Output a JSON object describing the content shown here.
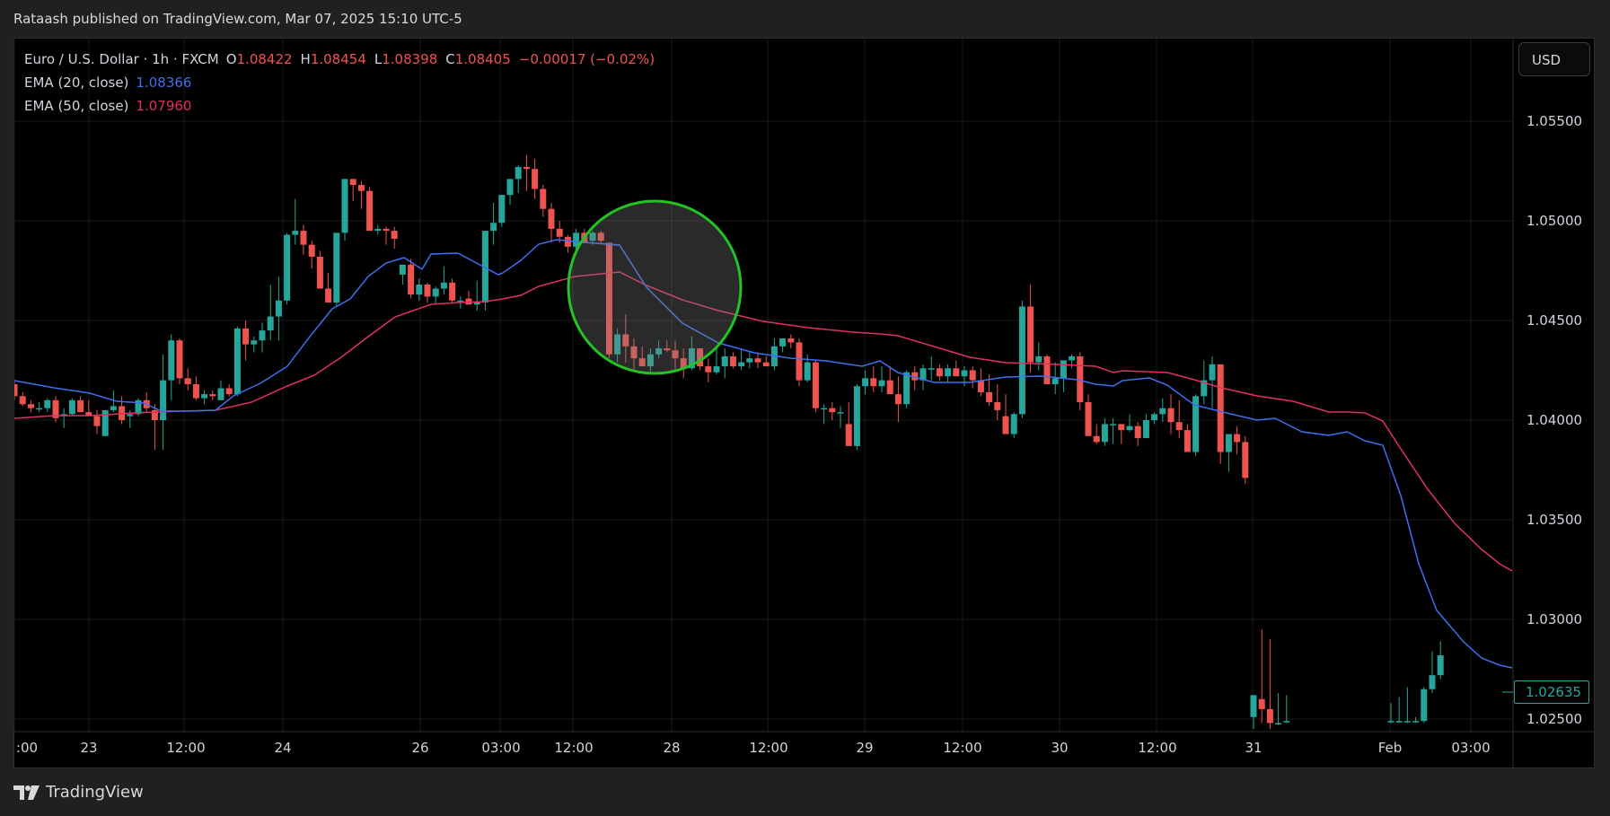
{
  "header": {
    "published": "Rataash published on TradingView.com, Mar 07, 2025 15:10 UTC-5"
  },
  "legend": {
    "symbol": "Euro / U.S. Dollar · 1h · FXCM",
    "open_label": "O",
    "open": "1.08422",
    "high_label": "H",
    "high": "1.08454",
    "low_label": "L",
    "low": "1.08398",
    "close_label": "C",
    "close": "1.08405",
    "change": "−0.00017 (−0.02%)",
    "ema20_label": "EMA (20, close)",
    "ema20_value": "1.08366",
    "ema50_label": "EMA (50, close)",
    "ema50_value": "1.07960"
  },
  "currency_button": "USD",
  "price_axis": {
    "labels": [
      "1.05500",
      "1.05000",
      "1.04500",
      "1.04000",
      "1.03500",
      "1.03000",
      "1.02500"
    ],
    "current_price": "1.02635"
  },
  "time_axis": {
    "labels": [
      ":00",
      "23",
      "12:00",
      "24",
      "26",
      "03:00",
      "12:00",
      "28",
      "12:00",
      "29",
      "12:00",
      "30",
      "12:00",
      "31",
      "Feb",
      "03:00"
    ]
  },
  "footer": {
    "brand": "TradingView"
  },
  "colors": {
    "up": "#26a69a",
    "down": "#ef5350",
    "ema20": "#3d6ff0",
    "ema50": "#e0305f",
    "highlight_circle": "#22c322",
    "background": "#000000",
    "grid": "#1a1a1a"
  },
  "chart_data": {
    "type": "candlestick",
    "title": "Euro / U.S. Dollar · 1h · FXCM",
    "xlabel": "",
    "ylabel": "USD",
    "ylim": [
      1.0245,
      1.058
    ],
    "grid": true,
    "legend_position": "top-left",
    "series": [
      {
        "name": "EUR/USD 1h (O,H,L,C)",
        "values": [
          [
            1.0418,
            1.042,
            1.041,
            1.0412
          ],
          [
            1.0412,
            1.0414,
            1.0407,
            1.0408
          ],
          [
            1.0408,
            1.041,
            1.0404,
            1.0406
          ],
          [
            1.0406,
            1.0409,
            1.0404,
            1.0406
          ],
          [
            1.0406,
            1.0411,
            1.0404,
            1.041
          ],
          [
            1.041,
            1.0412,
            1.0399,
            1.0401
          ],
          [
            1.0402,
            1.0406,
            1.0396,
            1.0403
          ],
          [
            1.0403,
            1.0411,
            1.0402,
            1.041
          ],
          [
            1.041,
            1.0412,
            1.0404,
            1.0404
          ],
          [
            1.0404,
            1.041,
            1.0402,
            1.0402
          ],
          [
            1.0402,
            1.0405,
            1.0393,
            1.0397
          ],
          [
            1.0392,
            1.0405,
            1.0392,
            1.0405
          ],
          [
            1.0405,
            1.0415,
            1.0404,
            1.0407
          ],
          [
            1.0407,
            1.0412,
            1.0398,
            1.04
          ],
          [
            1.0402,
            1.0405,
            1.0396,
            1.0403
          ],
          [
            1.0403,
            1.0411,
            1.0402,
            1.041
          ],
          [
            1.041,
            1.0414,
            1.0404,
            1.0406
          ],
          [
            1.0405,
            1.0408,
            1.0385,
            1.04
          ],
          [
            1.04,
            1.0433,
            1.0385,
            1.042
          ],
          [
            1.042,
            1.0443,
            1.041,
            1.044
          ],
          [
            1.044,
            1.0441,
            1.0418,
            1.0421
          ],
          [
            1.0421,
            1.0426,
            1.0415,
            1.0418
          ],
          [
            1.0418,
            1.0422,
            1.041,
            1.0411
          ],
          [
            1.0411,
            1.0415,
            1.0408,
            1.0413
          ],
          [
            1.0413,
            1.0415,
            1.041,
            1.0412
          ],
          [
            1.041,
            1.042,
            1.041,
            1.0416
          ],
          [
            1.0416,
            1.0418,
            1.0412,
            1.0413
          ],
          [
            1.0413,
            1.0447,
            1.0412,
            1.0446
          ],
          [
            1.0446,
            1.045,
            1.043,
            1.0438
          ],
          [
            1.0438,
            1.0442,
            1.0434,
            1.044
          ],
          [
            1.044,
            1.0449,
            1.0434,
            1.0445
          ],
          [
            1.0445,
            1.0468,
            1.044,
            1.0452
          ],
          [
            1.0452,
            1.0472,
            1.044,
            1.046
          ],
          [
            1.046,
            1.0494,
            1.0458,
            1.0493
          ],
          [
            1.0493,
            1.0511,
            1.0488,
            1.0495
          ],
          [
            1.0495,
            1.0498,
            1.0483,
            1.0488
          ],
          [
            1.0488,
            1.049,
            1.0476,
            1.0482
          ],
          [
            1.0482,
            1.0485,
            1.0466,
            1.0466
          ],
          [
            1.0466,
            1.0474,
            1.0459,
            1.0459
          ],
          [
            1.0459,
            1.0494,
            1.0457,
            1.0494
          ],
          [
            1.0494,
            1.052,
            1.049,
            1.0521
          ],
          [
            1.0521,
            1.0521,
            1.051,
            1.0518
          ],
          [
            1.0518,
            1.052,
            1.0506,
            1.0515
          ],
          [
            1.0515,
            1.0517,
            1.0495,
            1.0495
          ],
          [
            1.0495,
            1.0498,
            1.0493,
            1.0496
          ],
          [
            1.0496,
            1.0497,
            1.0488,
            1.0495
          ],
          [
            1.0495,
            1.0497,
            1.0486,
            1.0491
          ],
          [
            1.0473,
            1.0478,
            1.0468,
            1.0478
          ],
          [
            1.0478,
            1.0481,
            1.0461,
            1.0463
          ],
          [
            1.0463,
            1.0471,
            1.046,
            1.0468
          ],
          [
            1.0468,
            1.0469,
            1.0459,
            1.0462
          ],
          [
            1.0462,
            1.0467,
            1.0458,
            1.0466
          ],
          [
            1.0466,
            1.0477,
            1.0463,
            1.0469
          ],
          [
            1.0469,
            1.0471,
            1.0459,
            1.046
          ],
          [
            1.046,
            1.0462,
            1.0456,
            1.046
          ],
          [
            1.0461,
            1.0465,
            1.0458,
            1.0458
          ],
          [
            1.0458,
            1.047,
            1.0455,
            1.0459
          ],
          [
            1.0459,
            1.0495,
            1.0455,
            1.0495
          ],
          [
            1.0495,
            1.0509,
            1.0488,
            1.0499
          ],
          [
            1.0499,
            1.0511,
            1.0497,
            1.0513
          ],
          [
            1.0513,
            1.0517,
            1.0508,
            1.0521
          ],
          [
            1.0521,
            1.0528,
            1.0514,
            1.0527
          ],
          [
            1.0527,
            1.0533,
            1.0515,
            1.0526
          ],
          [
            1.0526,
            1.0531,
            1.0511,
            1.0516
          ],
          [
            1.0516,
            1.0518,
            1.0502,
            1.0506
          ],
          [
            1.0506,
            1.0509,
            1.0489,
            1.0496
          ],
          [
            1.0496,
            1.05,
            1.0489,
            1.0492
          ],
          [
            1.0492,
            1.0493,
            1.0484,
            1.0487
          ],
          [
            1.0487,
            1.0496,
            1.0484,
            1.0494
          ],
          [
            1.0494,
            1.0496,
            1.0489,
            1.0489
          ],
          [
            1.049,
            1.0495,
            1.0488,
            1.0494
          ],
          [
            1.0494,
            1.0495,
            1.0488,
            1.049
          ],
          [
            1.0489,
            1.0489,
            1.0431,
            1.0433
          ],
          [
            1.0433,
            1.0446,
            1.0429,
            1.0443
          ],
          [
            1.0443,
            1.0453,
            1.0429,
            1.0437
          ],
          [
            1.0437,
            1.0441,
            1.0425,
            1.0431
          ],
          [
            1.0431,
            1.0437,
            1.0428,
            1.0427
          ],
          [
            1.0427,
            1.0436,
            1.0424,
            1.0433
          ],
          [
            1.0433,
            1.044,
            1.0431,
            1.0436
          ],
          [
            1.0436,
            1.044,
            1.0434,
            1.0435
          ],
          [
            1.0435,
            1.044,
            1.0425,
            1.0431
          ],
          [
            1.0431,
            1.0436,
            1.0421,
            1.0426
          ],
          [
            1.0426,
            1.0442,
            1.0425,
            1.0436
          ],
          [
            1.0436,
            1.0436,
            1.0425,
            1.0427
          ],
          [
            1.0427,
            1.0431,
            1.0419,
            1.0424
          ],
          [
            1.0424,
            1.0436,
            1.0423,
            1.0427
          ],
          [
            1.0427,
            1.0436,
            1.0421,
            1.0432
          ],
          [
            1.0432,
            1.0434,
            1.0426,
            1.0427
          ],
          [
            1.0427,
            1.0436,
            1.0425,
            1.0429
          ],
          [
            1.0429,
            1.0434,
            1.0426,
            1.0431
          ],
          [
            1.0431,
            1.0434,
            1.0426,
            1.0429
          ],
          [
            1.0429,
            1.0432,
            1.0427,
            1.0427
          ],
          [
            1.0427,
            1.0441,
            1.0425,
            1.0437
          ],
          [
            1.0437,
            1.0441,
            1.0434,
            1.0441
          ],
          [
            1.0441,
            1.0443,
            1.0436,
            1.0439
          ],
          [
            1.0439,
            1.0441,
            1.0417,
            1.042
          ],
          [
            1.042,
            1.0433,
            1.0419,
            1.0429
          ],
          [
            1.0429,
            1.043,
            1.0404,
            1.0406
          ],
          [
            1.0406,
            1.0408,
            1.0398,
            1.0406
          ],
          [
            1.0406,
            1.0409,
            1.04,
            1.0404
          ],
          [
            1.0404,
            1.0407,
            1.0396,
            1.0404
          ],
          [
            1.0398,
            1.0409,
            1.0395,
            1.0387
          ],
          [
            1.0387,
            1.0418,
            1.0385,
            1.0417
          ],
          [
            1.0417,
            1.0425,
            1.0413,
            1.0421
          ],
          [
            1.0421,
            1.0427,
            1.0414,
            1.0417
          ],
          [
            1.0417,
            1.0427,
            1.0414,
            1.042
          ],
          [
            1.042,
            1.0427,
            1.0414,
            1.0413
          ],
          [
            1.0413,
            1.0422,
            1.0399,
            1.0408
          ],
          [
            1.0408,
            1.0425,
            1.0406,
            1.0424
          ],
          [
            1.0424,
            1.0427,
            1.0415,
            1.042
          ],
          [
            1.042,
            1.0428,
            1.0415,
            1.0426
          ],
          [
            1.0426,
            1.0432,
            1.042,
            1.0426
          ],
          [
            1.0426,
            1.0428,
            1.042,
            1.0422
          ],
          [
            1.0422,
            1.0428,
            1.0419,
            1.0426
          ],
          [
            1.0426,
            1.043,
            1.0422,
            1.0422
          ],
          [
            1.0422,
            1.0427,
            1.0417,
            1.0425
          ],
          [
            1.0425,
            1.0427,
            1.0416,
            1.042
          ],
          [
            1.042,
            1.0426,
            1.0412,
            1.0414
          ],
          [
            1.0414,
            1.0423,
            1.0407,
            1.0409
          ],
          [
            1.0409,
            1.0418,
            1.04,
            1.0405
          ],
          [
            1.0402,
            1.0413,
            1.0399,
            1.0393
          ],
          [
            1.0393,
            1.0404,
            1.0391,
            1.0403
          ],
          [
            1.0403,
            1.046,
            1.0401,
            1.0457
          ],
          [
            1.0457,
            1.0468,
            1.0424,
            1.0429
          ],
          [
            1.0429,
            1.0439,
            1.0425,
            1.0432
          ],
          [
            1.0432,
            1.0433,
            1.0418,
            1.0418
          ],
          [
            1.0418,
            1.0429,
            1.0413,
            1.0421
          ],
          [
            1.0421,
            1.0429,
            1.0414,
            1.043
          ],
          [
            1.043,
            1.0433,
            1.0426,
            1.0432
          ],
          [
            1.0432,
            1.0434,
            1.0405,
            1.0409
          ],
          [
            1.0409,
            1.0413,
            1.0392,
            1.0392
          ],
          [
            1.0392,
            1.0398,
            1.0388,
            1.0389
          ],
          [
            1.0389,
            1.0401,
            1.0387,
            1.0398
          ],
          [
            1.0398,
            1.0401,
            1.0388,
            1.0398
          ],
          [
            1.0398,
            1.0398,
            1.0388,
            1.0395
          ],
          [
            1.0395,
            1.0403,
            1.0394,
            1.0397
          ],
          [
            1.0397,
            1.0399,
            1.0387,
            1.0391
          ],
          [
            1.0391,
            1.0403,
            1.0391,
            1.04
          ],
          [
            1.04,
            1.0404,
            1.0398,
            1.0403
          ],
          [
            1.0403,
            1.0411,
            1.0399,
            1.0406
          ],
          [
            1.0406,
            1.0413,
            1.0393,
            1.0399
          ],
          [
            1.0399,
            1.041,
            1.0391,
            1.0395
          ],
          [
            1.0395,
            1.0398,
            1.0384,
            1.0384
          ],
          [
            1.0384,
            1.0413,
            1.0382,
            1.0412
          ],
          [
            1.0412,
            1.043,
            1.0408,
            1.042
          ],
          [
            1.042,
            1.0432,
            1.0406,
            1.0428
          ],
          [
            1.0428,
            1.0428,
            1.0378,
            1.0384
          ],
          [
            1.0384,
            1.0392,
            1.0374,
            1.0393
          ],
          [
            1.0393,
            1.0397,
            1.0383,
            1.0389
          ],
          [
            1.0389,
            1.0392,
            1.0368,
            1.0371
          ],
          [
            1.0251,
            1.0262,
            1.0245,
            1.0262
          ],
          [
            1.026,
            1.0295,
            1.0248,
            1.0255
          ],
          [
            1.0255,
            1.029,
            1.0245,
            1.0248
          ],
          [
            1.0248,
            1.0263,
            1.0247,
            1.0248
          ],
          [
            1.0249,
            1.0262,
            1.0248,
            1.0249
          ],
          [
            1.0249,
            1.0258,
            1.0248,
            1.0249
          ],
          [
            1.0249,
            1.0261,
            1.0248,
            1.0249
          ],
          [
            1.0249,
            1.0266,
            1.0248,
            1.0249
          ],
          [
            1.0249,
            1.0251,
            1.0248,
            1.0249
          ],
          [
            1.0249,
            1.0266,
            1.0248,
            1.0265
          ],
          [
            1.0265,
            1.0284,
            1.0263,
            1.0272
          ],
          [
            1.0272,
            1.0289,
            1.027,
            1.0282
          ]
        ]
      },
      {
        "name": "EMA (20, close)",
        "last": 1.08366
      },
      {
        "name": "EMA (50, close)",
        "last": 1.0796
      }
    ],
    "y_ticks": [
      1.055,
      1.05,
      1.045,
      1.04,
      1.035,
      1.03,
      1.025
    ],
    "x_ticks": [
      ":00",
      "23",
      "12:00",
      "24",
      "26",
      "03:00",
      "12:00",
      "28",
      "12:00",
      "29",
      "12:00",
      "30",
      "12:00",
      "31",
      "Feb",
      "03:00"
    ],
    "annotations": [
      {
        "type": "circle",
        "color": "#22c322",
        "fill": "rgba(128,128,128,0.35)",
        "note": "highlighted breakdown around Jan 27"
      }
    ],
    "current_price": 1.02635
  }
}
